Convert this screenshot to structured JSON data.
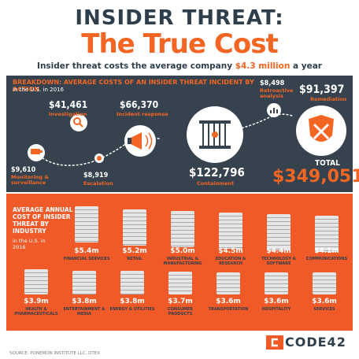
{
  "header": {
    "title_line1": "INSIDER THREAT:",
    "title_line2": "The True Cost",
    "subtitle_pre": "Insider threat costs the average company ",
    "subtitle_highlight": "$4.3 million",
    "subtitle_post": " a year"
  },
  "breakdown": {
    "title": "BREAKDOWN: AVERAGE COSTS OF AN INSIDER THREAT INCIDENT BY ACTION",
    "subtitle": "in the U.S. in 2016",
    "items": [
      {
        "amount": "$9,610",
        "label": "Monitoring & surveillance"
      },
      {
        "amount": "$41,461",
        "label": "Investigation"
      },
      {
        "amount": "$8,919",
        "label": "Escalation"
      },
      {
        "amount": "$66,370",
        "label": "Incident response"
      },
      {
        "amount": "$122,796",
        "label": "Containment"
      },
      {
        "amount": "$8,498",
        "label": "Retroactive analysis"
      },
      {
        "amount": "$91,397",
        "label": "Remediation"
      }
    ],
    "total_label": "TOTAL",
    "total_value": "$349,051"
  },
  "industry": {
    "title": "AVERAGE ANNUAL COST OF INSIDER THREAT BY INDUSTRY",
    "subtitle": "in the U.S. in 2016",
    "row1": [
      {
        "value": "$5.4m",
        "label": "FINANCIAL SERVICES"
      },
      {
        "value": "$5.2m",
        "label": "RETAIL"
      },
      {
        "value": "$5.0m",
        "label": "INDUSTRIAL & MANUFACTURING"
      },
      {
        "value": "$4.5m",
        "label": "EDUCATION & RESEARCH"
      },
      {
        "value": "$4.4m",
        "label": "TECHNOLOGY & SOFTWARE"
      },
      {
        "value": "$4.1m",
        "label": "COMMUNICATIONS"
      }
    ],
    "row2": [
      {
        "value": "$3.9m",
        "label": "HEALTH & PHARMACEUTICALS"
      },
      {
        "value": "$3.8m",
        "label": "ENTERTAINMENT & MEDIA"
      },
      {
        "value": "$3.8m",
        "label": "ENERGY & UTILITIES"
      },
      {
        "value": "$3.7m",
        "label": "CONSUMER PRODUCTS"
      },
      {
        "value": "$3.6m",
        "label": "TRANSPORTATION"
      },
      {
        "value": "$3.6m",
        "label": "HOSPITALITY"
      },
      {
        "value": "$3.6m",
        "label": "SERVICES"
      }
    ]
  },
  "footer": {
    "source": "SOURCE: PONEMON INSTITUTE LLC, DTEX",
    "logo": "CODE42"
  },
  "colors": {
    "accent": "#f26522",
    "dark": "#36434f",
    "orange_bg": "#f05a28"
  },
  "icons": [
    "camera-icon",
    "magnifier-icon",
    "megaphone-icon",
    "cage-icon",
    "chart-icon",
    "tools-shield-icon"
  ]
}
